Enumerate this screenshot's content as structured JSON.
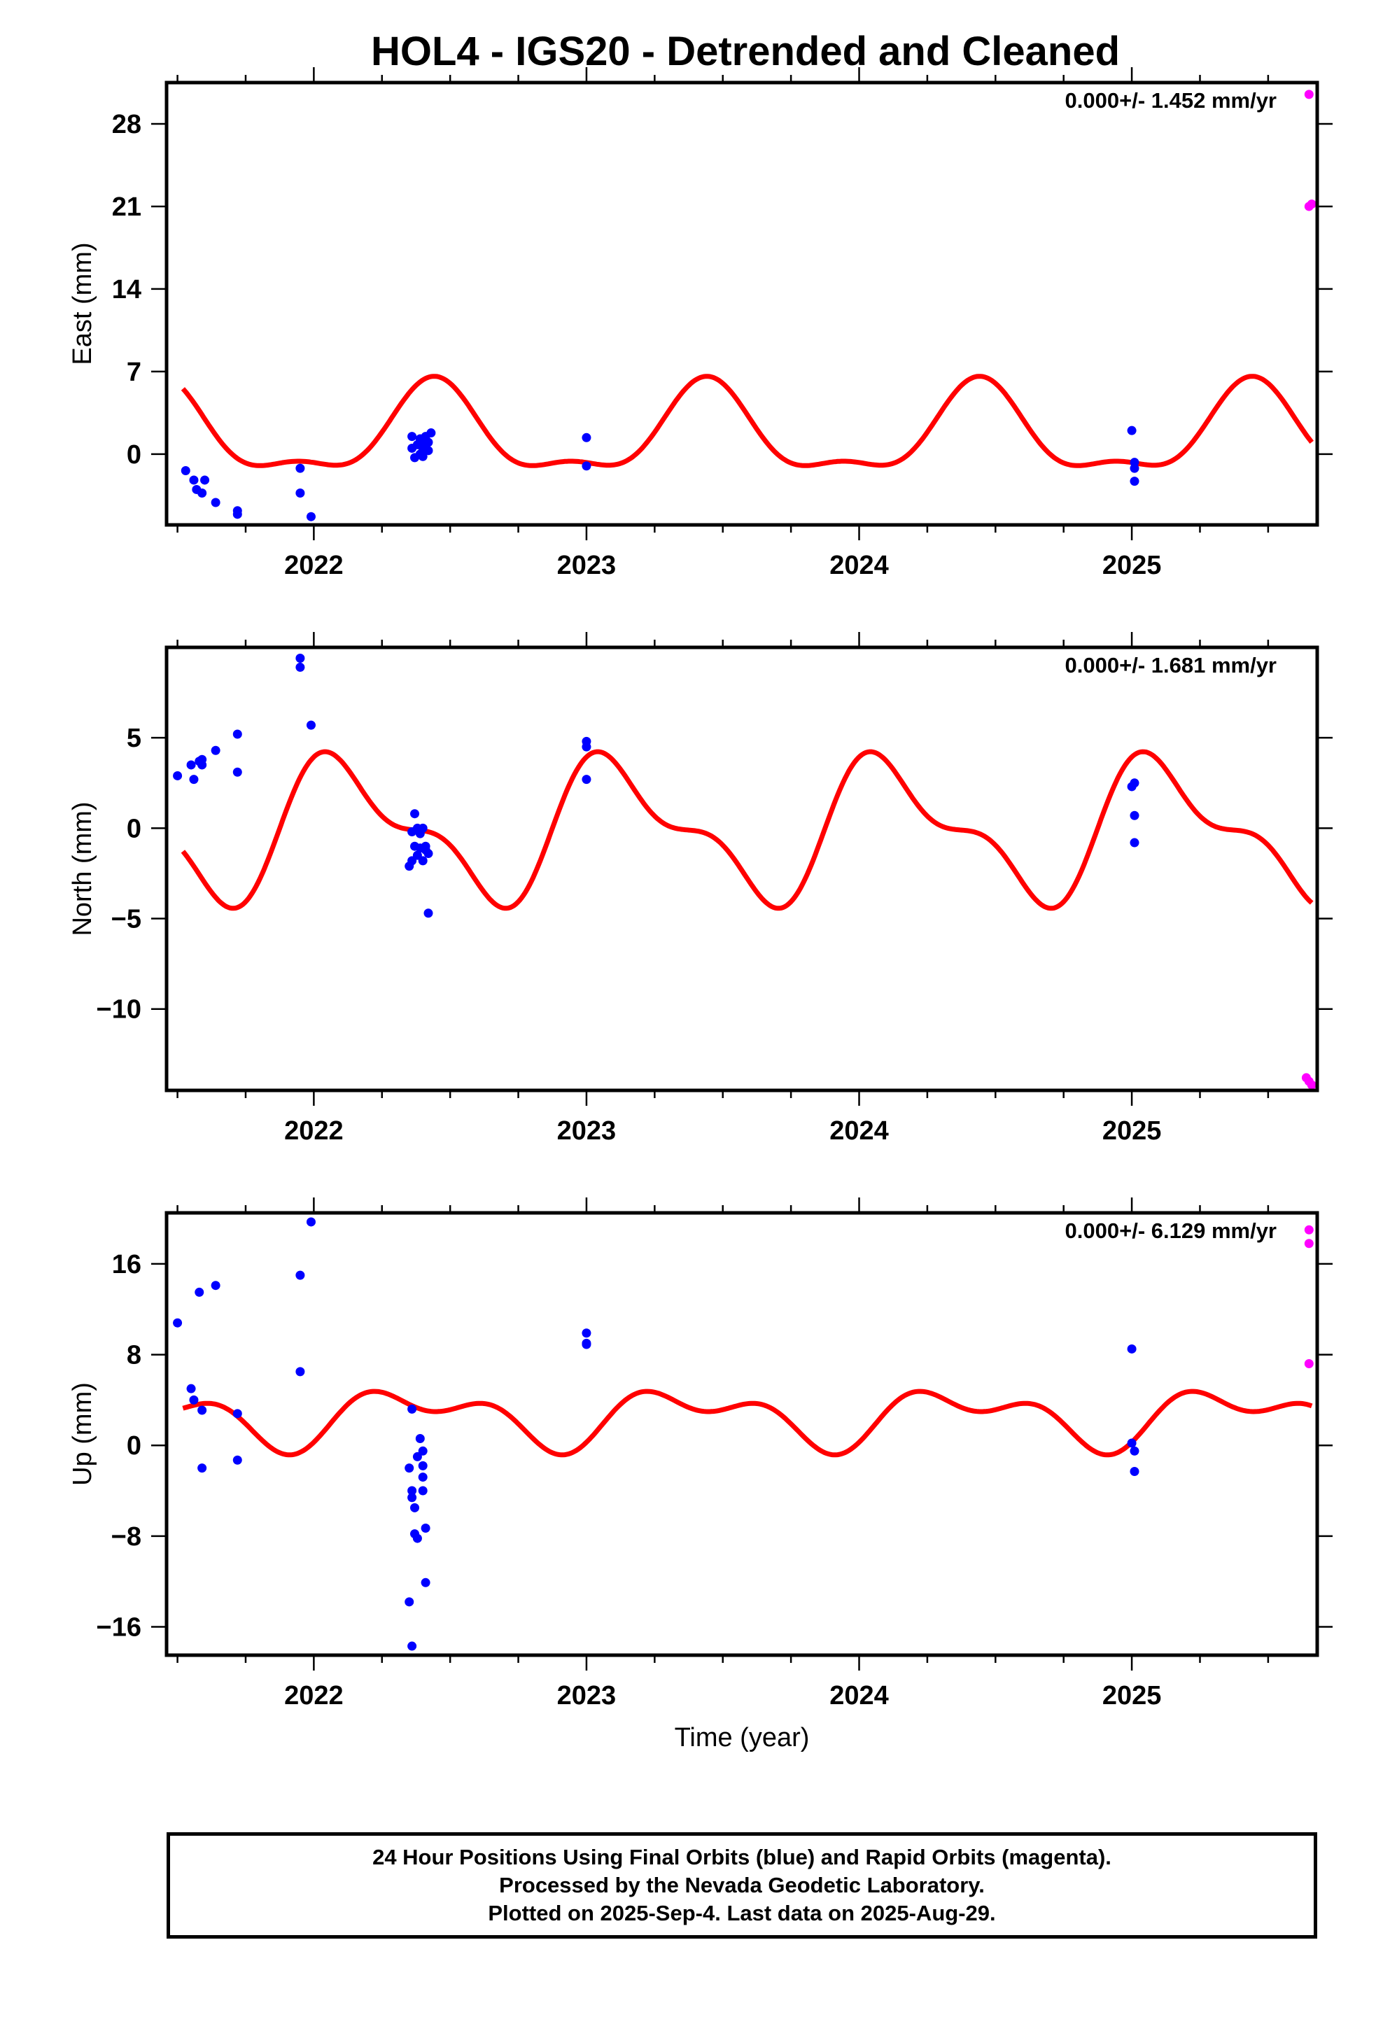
{
  "title": "HOL4 - IGS20 - Detrended and Cleaned",
  "footer": {
    "line1": "24 Hour Positions Using Final Orbits (blue) and Rapid Orbits (magenta).",
    "line2": "Processed by the Nevada Geodetic Laboratory.",
    "line3": "Plotted on 2025-Sep-4. Last data on 2025-Aug-29."
  },
  "colors": {
    "final": "#0000ff",
    "rapid": "#ff00ff",
    "model": "#ff0000",
    "axis": "#000000"
  },
  "chart_data": [
    {
      "type": "scatter",
      "ylabel": "East (mm)",
      "xlabel": "",
      "rate_label": "0.000+/- 1.452 mm/yr",
      "xlim": [
        2021.46,
        2025.68
      ],
      "ylim": [
        -6,
        31.5
      ],
      "x_ticks": [
        2022,
        2023,
        2024,
        2025
      ],
      "y_ticks": [
        0,
        7,
        14,
        21,
        28
      ],
      "final_points": [
        [
          2021.53,
          -1.4
        ],
        [
          2021.56,
          -2.2
        ],
        [
          2021.57,
          -3.0
        ],
        [
          2021.59,
          -3.3
        ],
        [
          2021.6,
          -2.2
        ],
        [
          2021.64,
          -4.1
        ],
        [
          2021.72,
          -4.8
        ],
        [
          2021.72,
          -5.1
        ],
        [
          2021.95,
          -1.2
        ],
        [
          2021.95,
          -3.3
        ],
        [
          2021.99,
          -5.3
        ],
        [
          2022.36,
          1.5
        ],
        [
          2022.36,
          0.5
        ],
        [
          2022.37,
          -0.3
        ],
        [
          2022.38,
          0.8
        ],
        [
          2022.39,
          0.0
        ],
        [
          2022.39,
          1.3
        ],
        [
          2022.4,
          0.5
        ],
        [
          2022.4,
          -0.2
        ],
        [
          2022.41,
          1.5
        ],
        [
          2022.41,
          0.8
        ],
        [
          2022.42,
          1.0
        ],
        [
          2022.42,
          0.3
        ],
        [
          2022.43,
          1.8
        ],
        [
          2023.0,
          1.4
        ],
        [
          2023.0,
          -1.0
        ],
        [
          2025.0,
          2.0
        ],
        [
          2025.01,
          -0.7
        ],
        [
          2025.01,
          -1.2
        ],
        [
          2025.01,
          -2.3
        ]
      ],
      "rapid_points": [
        [
          2025.65,
          30.5
        ],
        [
          2025.65,
          21.0
        ],
        [
          2025.66,
          21.2
        ]
      ],
      "model": {
        "offset": 1.6,
        "a1": 3.6,
        "p1": -1.2,
        "a2": 1.4,
        "p2": 2.3
      }
    },
    {
      "type": "scatter",
      "ylabel": "North (mm)",
      "xlabel": "",
      "rate_label": "0.000+/- 1.681 mm/yr",
      "xlim": [
        2021.46,
        2025.68
      ],
      "ylim": [
        -14.5,
        10
      ],
      "x_ticks": [
        2022,
        2023,
        2024,
        2025
      ],
      "y_ticks": [
        -10,
        -5,
        0,
        5
      ],
      "final_points": [
        [
          2021.5,
          2.9
        ],
        [
          2021.55,
          3.5
        ],
        [
          2021.56,
          2.7
        ],
        [
          2021.58,
          3.7
        ],
        [
          2021.59,
          3.8
        ],
        [
          2021.59,
          3.5
        ],
        [
          2021.64,
          4.3
        ],
        [
          2021.72,
          3.1
        ],
        [
          2021.72,
          5.2
        ],
        [
          2021.95,
          9.4
        ],
        [
          2021.95,
          8.9
        ],
        [
          2021.99,
          5.7
        ],
        [
          2022.35,
          -2.1
        ],
        [
          2022.36,
          -0.2
        ],
        [
          2022.36,
          -1.8
        ],
        [
          2022.37,
          0.8
        ],
        [
          2022.37,
          -1.0
        ],
        [
          2022.38,
          0.0
        ],
        [
          2022.38,
          -1.5
        ],
        [
          2022.39,
          -0.3
        ],
        [
          2022.39,
          -1.1
        ],
        [
          2022.4,
          0.0
        ],
        [
          2022.4,
          -1.8
        ],
        [
          2022.41,
          -1.0
        ],
        [
          2022.41,
          -1.2
        ],
        [
          2022.42,
          -1.4
        ],
        [
          2022.42,
          -4.7
        ],
        [
          2023.0,
          4.8
        ],
        [
          2023.0,
          4.5
        ],
        [
          2023.0,
          2.7
        ],
        [
          2025.0,
          2.3
        ],
        [
          2025.01,
          2.5
        ],
        [
          2025.01,
          0.7
        ],
        [
          2025.01,
          -0.8
        ]
      ],
      "rapid_points": [
        [
          2025.64,
          -13.8
        ],
        [
          2025.65,
          -14.0
        ],
        [
          2025.66,
          -14.2
        ]
      ],
      "model": {
        "offset": -0.1,
        "a1": 3.4,
        "p1": 0.8,
        "a2": 1.6,
        "p2": 1.6
      }
    },
    {
      "type": "scatter",
      "ylabel": "Up (mm)",
      "xlabel": "Time (year)",
      "rate_label": "0.000+/- 6.129 mm/yr",
      "xlim": [
        2021.46,
        2025.68
      ],
      "ylim": [
        -18.5,
        20.5
      ],
      "x_ticks": [
        2022,
        2023,
        2024,
        2025
      ],
      "y_ticks": [
        -16,
        -8,
        0,
        8,
        16
      ],
      "final_points": [
        [
          2021.5,
          10.8
        ],
        [
          2021.55,
          5.0
        ],
        [
          2021.56,
          4.0
        ],
        [
          2021.58,
          13.5
        ],
        [
          2021.59,
          3.1
        ],
        [
          2021.59,
          -2.0
        ],
        [
          2021.64,
          14.1
        ],
        [
          2021.72,
          2.8
        ],
        [
          2021.72,
          -1.3
        ],
        [
          2021.95,
          15.0
        ],
        [
          2021.95,
          6.5
        ],
        [
          2021.99,
          19.7
        ],
        [
          2022.35,
          -13.8
        ],
        [
          2022.35,
          -2.0
        ],
        [
          2022.36,
          3.2
        ],
        [
          2022.36,
          -4.0
        ],
        [
          2022.36,
          -4.6
        ],
        [
          2022.36,
          -17.7
        ],
        [
          2022.37,
          -5.5
        ],
        [
          2022.37,
          -7.8
        ],
        [
          2022.38,
          -1.0
        ],
        [
          2022.38,
          -8.2
        ],
        [
          2022.39,
          0.6
        ],
        [
          2022.4,
          -1.8
        ],
        [
          2022.4,
          -0.5
        ],
        [
          2022.4,
          -4.0
        ],
        [
          2022.4,
          -2.8
        ],
        [
          2022.41,
          -7.3
        ],
        [
          2022.41,
          -12.1
        ],
        [
          2023.0,
          9.9
        ],
        [
          2023.0,
          9.0
        ],
        [
          2023.0,
          8.9
        ],
        [
          2025.0,
          8.5
        ],
        [
          2025.0,
          0.2
        ],
        [
          2025.01,
          -0.5
        ],
        [
          2025.01,
          -2.3
        ]
      ],
      "rapid_points": [
        [
          2025.65,
          19.0
        ],
        [
          2025.65,
          17.8
        ],
        [
          2025.65,
          7.2
        ]
      ],
      "model": {
        "offset": 2.5,
        "a1": 2.0,
        "p1": -0.8,
        "a2": 1.4,
        "p2": -0.6
      }
    }
  ]
}
